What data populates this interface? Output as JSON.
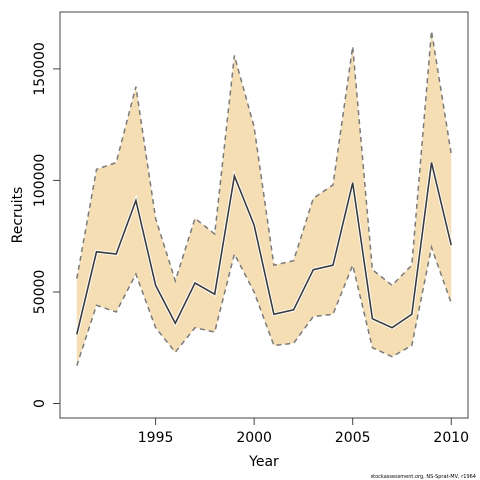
{
  "chart_data": {
    "type": "line",
    "title": "",
    "xlabel": "Year",
    "ylabel": "Recruits",
    "caption": "stockassessment.org, NS-Sprat-MV, r1964",
    "xlim": [
      1990.15,
      2010.85
    ],
    "ylim": [
      -6500,
      175500
    ],
    "x_ticks": [
      1995,
      2000,
      2005,
      2010
    ],
    "y_ticks": [
      0,
      50000,
      100000,
      150000
    ],
    "grid": false,
    "legend": "none",
    "x": [
      1991,
      1992,
      1993,
      1994,
      1995,
      1996,
      1997,
      1998,
      1999,
      2000,
      2001,
      2002,
      2003,
      2004,
      2005,
      2006,
      2007,
      2008,
      2009,
      2010
    ],
    "series": [
      {
        "role": "estimate",
        "values": [
          31000,
          68000,
          67000,
          91000,
          53000,
          36000,
          54000,
          49000,
          102000,
          80000,
          40000,
          42000,
          60000,
          62000,
          99000,
          38000,
          34000,
          40000,
          108000,
          71000
        ]
      },
      {
        "role": "lower",
        "values": [
          17000,
          44000,
          41000,
          58000,
          34000,
          23000,
          34000,
          32000,
          67000,
          50000,
          26000,
          27000,
          39000,
          40000,
          62000,
          25000,
          21000,
          26000,
          70000,
          45000
        ]
      },
      {
        "role": "upper",
        "values": [
          56000,
          105000,
          108000,
          142000,
          83000,
          55000,
          83000,
          76000,
          156000,
          124000,
          62000,
          64000,
          92000,
          98000,
          160000,
          60000,
          53000,
          62000,
          167000,
          112000
        ]
      }
    ],
    "colors": {
      "band": "#f5deb3",
      "line": "#3a3a3a",
      "dash": "#7a7a7a",
      "axis": "#444444"
    }
  }
}
